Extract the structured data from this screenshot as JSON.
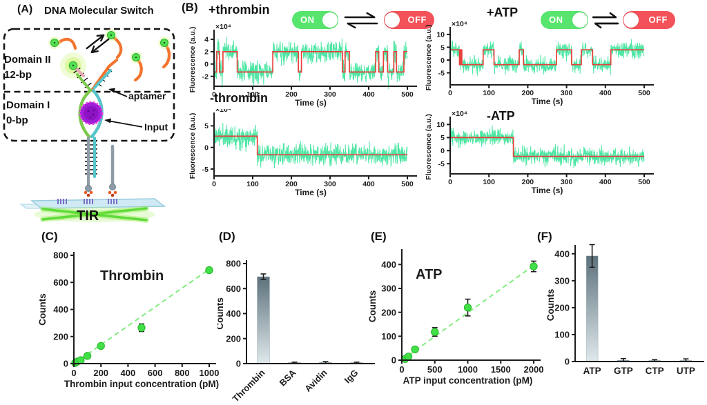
{
  "figure": {
    "panel_a": {
      "label": "(A)",
      "title": "DNA Molecular Switch",
      "domain_ii": "Domain II",
      "domain_ii_bp": "12-bp",
      "domain_i": "Domain I",
      "domain_i_bp": "0-bp",
      "aptamer_label": "aptamer",
      "input_label": "Input",
      "tir_label": "TIR"
    },
    "panel_b": {
      "label": "(B)",
      "toggle_on": "ON",
      "toggle_off": "OFF"
    }
  },
  "colors": {
    "trace_green": "#4ce6a3",
    "fit_red": "#e8413c",
    "dot_green": "#41e048",
    "dot_edge": "#28b42c",
    "fit_dash_green": "#82ec7e",
    "bar_top": "#5d717c",
    "bar_bottom": "#dfe9ec",
    "axis": "#1c1c1c",
    "toggle_on": "#58e56e",
    "toggle_off": "#f3525a"
  },
  "chart_data": [
    {
      "id": "plus_thrombin",
      "type": "line",
      "panel": "B",
      "title": "+thrombin",
      "xlabel": "Time (s)",
      "ylabel": "Fluorescence (a.u.)",
      "y_multiplier": "×10⁴",
      "xlim": [
        0,
        500
      ],
      "xticks": [
        0,
        100,
        200,
        300,
        400,
        500
      ],
      "ylim": [
        -3.6,
        5.0
      ],
      "yticks": [
        -2,
        0,
        2,
        4
      ],
      "y_units": "1e4",
      "on_level": 2.0,
      "off_level": -1.3,
      "noise_sd": 1.1,
      "state_segments": [
        [
          0,
          7,
          "off"
        ],
        [
          7,
          14,
          "on"
        ],
        [
          14,
          23,
          "off"
        ],
        [
          23,
          60,
          "on"
        ],
        [
          60,
          152,
          "off"
        ],
        [
          152,
          218,
          "on"
        ],
        [
          218,
          226,
          "off"
        ],
        [
          226,
          332,
          "on"
        ],
        [
          332,
          339,
          "off"
        ],
        [
          339,
          350,
          "on"
        ],
        [
          350,
          418,
          "off"
        ],
        [
          418,
          426,
          "on"
        ],
        [
          426,
          438,
          "off"
        ],
        [
          438,
          449,
          "on"
        ],
        [
          449,
          465,
          "off"
        ],
        [
          465,
          472,
          "on"
        ],
        [
          472,
          491,
          "off"
        ],
        [
          491,
          500,
          "on"
        ]
      ]
    },
    {
      "id": "plus_atp",
      "type": "line",
      "panel": "B",
      "title": "+ATP",
      "xlabel": "Time (s)",
      "ylabel": "Fluorescence (a.u.)",
      "y_multiplier": "×10⁴",
      "xlim": [
        0,
        500
      ],
      "xticks": [
        0,
        100,
        200,
        300,
        400,
        500
      ],
      "ylim": [
        -9.7,
        11.6
      ],
      "yticks": [
        -5,
        0,
        5,
        10
      ],
      "y_units": "1e4",
      "on_level": 4.0,
      "off_level": -1.8,
      "noise_sd": 1.9,
      "state_segments": [
        [
          0,
          24,
          "on"
        ],
        [
          24,
          27,
          "off"
        ],
        [
          27,
          30,
          "on"
        ],
        [
          30,
          85,
          "off"
        ],
        [
          85,
          113,
          "on"
        ],
        [
          113,
          178,
          "off"
        ],
        [
          178,
          189,
          "on"
        ],
        [
          189,
          274,
          "off"
        ],
        [
          274,
          313,
          "on"
        ],
        [
          313,
          338,
          "off"
        ],
        [
          338,
          367,
          "on"
        ],
        [
          367,
          414,
          "off"
        ],
        [
          414,
          500,
          "on"
        ]
      ]
    },
    {
      "id": "minus_thrombin",
      "type": "line",
      "panel": "B",
      "title": "-thrombin",
      "xlabel": "Time (s)",
      "ylabel": "Fluorescence (a.u.)",
      "y_multiplier": "×10⁴",
      "xlim": [
        0,
        500
      ],
      "xticks": [
        0,
        100,
        200,
        300,
        400,
        500
      ],
      "ylim": [
        -6.6,
        7.3
      ],
      "yticks": [
        -5,
        0,
        5
      ],
      "y_units": "1e4",
      "on_level": 2.6,
      "off_level": -1.7,
      "noise_sd": 1.5,
      "state_segments": [
        [
          0,
          112,
          "on"
        ],
        [
          112,
          500,
          "off"
        ]
      ]
    },
    {
      "id": "minus_atp",
      "type": "line",
      "panel": "B",
      "title": "-ATP",
      "xlabel": "Time (s)",
      "ylabel": "Fluorescence (a.u.)",
      "y_multiplier": "×10⁴",
      "xlim": [
        0,
        500
      ],
      "xticks": [
        0,
        100,
        200,
        300,
        400,
        500
      ],
      "ylim": [
        -8.9,
        11.7
      ],
      "yticks": [
        -5,
        0,
        5,
        10
      ],
      "y_units": "1e4",
      "on_level": 5.0,
      "off_level": -2.2,
      "noise_sd": 2.0,
      "state_segments": [
        [
          0,
          163,
          "on"
        ],
        [
          163,
          500,
          "off"
        ]
      ]
    },
    {
      "id": "thrombin_titration",
      "type": "scatter",
      "panel": "C",
      "panel_label": "(C)",
      "title": "Thrombin",
      "xlabel": "Thrombin input concentration (pM)",
      "ylabel": "Counts",
      "xlim": [
        0,
        1000
      ],
      "xticks": [
        0,
        200,
        400,
        600,
        800,
        1000
      ],
      "ylim": [
        0,
        800
      ],
      "yticks": [
        0,
        200,
        400,
        600,
        800
      ],
      "x": [
        10,
        25,
        50,
        100,
        200,
        500,
        1000
      ],
      "y": [
        5,
        15,
        25,
        57,
        130,
        265,
        690
      ],
      "yerr": [
        3,
        4,
        5,
        6,
        8,
        28,
        15
      ],
      "fit": {
        "x0": 0,
        "y0": 0,
        "x1": 1000,
        "y1": 697,
        "style": "dashed"
      }
    },
    {
      "id": "thrombin_specificity",
      "type": "bar",
      "panel": "D",
      "panel_label": "(D)",
      "ylabel": "Counts",
      "categories": [
        "Thrombin",
        "BSA",
        "Avidin",
        "IgG"
      ],
      "values": [
        695,
        2,
        10,
        2
      ],
      "errors": [
        22,
        3,
        6,
        3
      ],
      "ylim": [
        0,
        800
      ],
      "yticks": [
        0,
        200,
        400,
        600,
        800
      ],
      "label_rotation": -45
    },
    {
      "id": "atp_titration",
      "type": "scatter",
      "panel": "E",
      "panel_label": "(E)",
      "title": "ATP",
      "xlabel": "ATP input concentration (pM)",
      "ylabel": "Counts",
      "xlim": [
        0,
        2000
      ],
      "xticks": [
        0,
        500,
        1000,
        1500,
        2000
      ],
      "ylim": [
        0,
        450
      ],
      "yticks": [
        0,
        100,
        200,
        300,
        400
      ],
      "x": [
        50,
        100,
        200,
        500,
        1000,
        2000
      ],
      "y": [
        5,
        15,
        45,
        118,
        220,
        392
      ],
      "yerr": [
        3,
        4,
        6,
        18,
        35,
        22
      ],
      "fit": {
        "x0": 0,
        "y0": 0,
        "x1": 2000,
        "y1": 396,
        "style": "dashed"
      }
    },
    {
      "id": "atp_specificity",
      "type": "bar",
      "panel": "F",
      "panel_label": "(F)",
      "ylabel": "Counts",
      "categories": [
        "ATP",
        "GTP",
        "CTP",
        "UTP"
      ],
      "values": [
        392,
        5,
        1,
        3
      ],
      "errors": [
        42,
        6,
        3,
        6
      ],
      "ylim": [
        0,
        420
      ],
      "yticks": [
        0,
        100,
        200,
        300,
        400
      ],
      "label_rotation": 0
    }
  ]
}
